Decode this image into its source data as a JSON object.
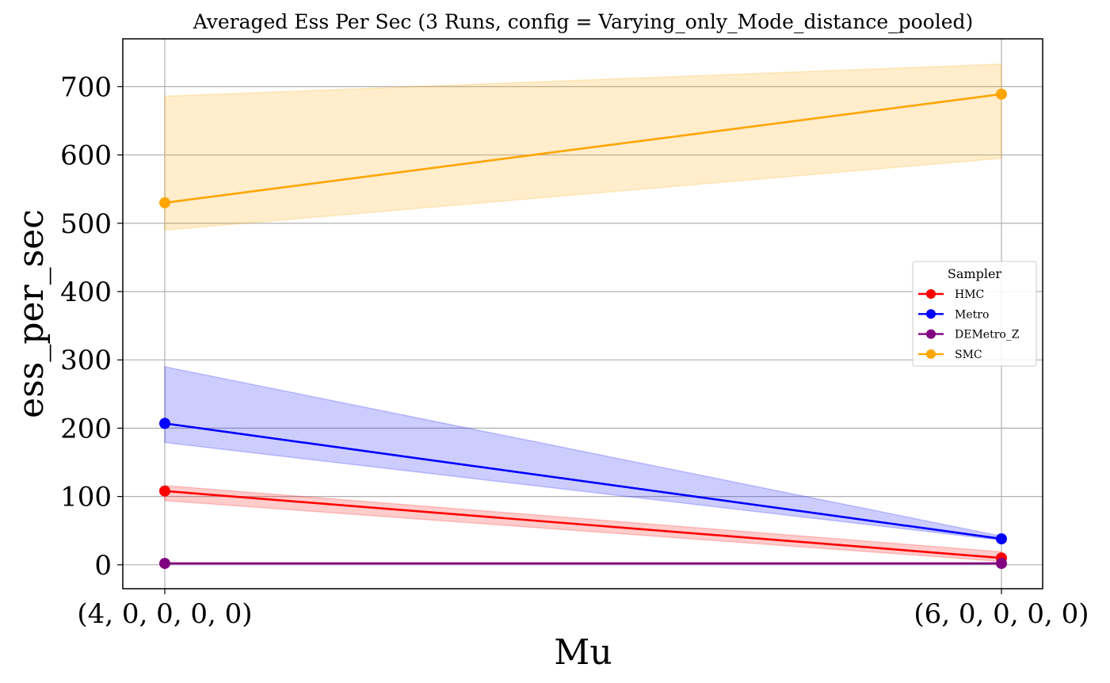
{
  "chart_data": {
    "type": "line",
    "title": "Averaged Ess Per Sec (3 Runs, config = Varying_only_Mode_distance_pooled)",
    "xlabel": "Mu",
    "ylabel": "ess_per_sec",
    "categories": [
      "(4, 0, 0, 0, 0)",
      "(6, 0, 0, 0, 0)"
    ],
    "ylim": [
      -35,
      770
    ],
    "yticks": [
      0,
      100,
      200,
      300,
      400,
      500,
      600,
      700
    ],
    "grid": true,
    "legend": {
      "title": "Sampler",
      "position": "center-right"
    },
    "series": [
      {
        "name": "HMC",
        "color": "#ff0000",
        "values": [
          108,
          10
        ],
        "band_low": [
          94,
          5
        ],
        "band_high": [
          116,
          19
        ]
      },
      {
        "name": "Metro",
        "color": "#0000ff",
        "values": [
          207,
          38
        ],
        "band_low": [
          179,
          36
        ],
        "band_high": [
          290,
          42
        ]
      },
      {
        "name": "DEMetro_Z",
        "color": "#800080",
        "values": [
          2,
          2
        ],
        "band_low": [
          1,
          1
        ],
        "band_high": [
          3,
          3
        ]
      },
      {
        "name": "SMC",
        "color": "#ffa500",
        "values": [
          530,
          689
        ],
        "band_low": [
          490,
          595
        ],
        "band_high": [
          686,
          733
        ]
      }
    ]
  }
}
